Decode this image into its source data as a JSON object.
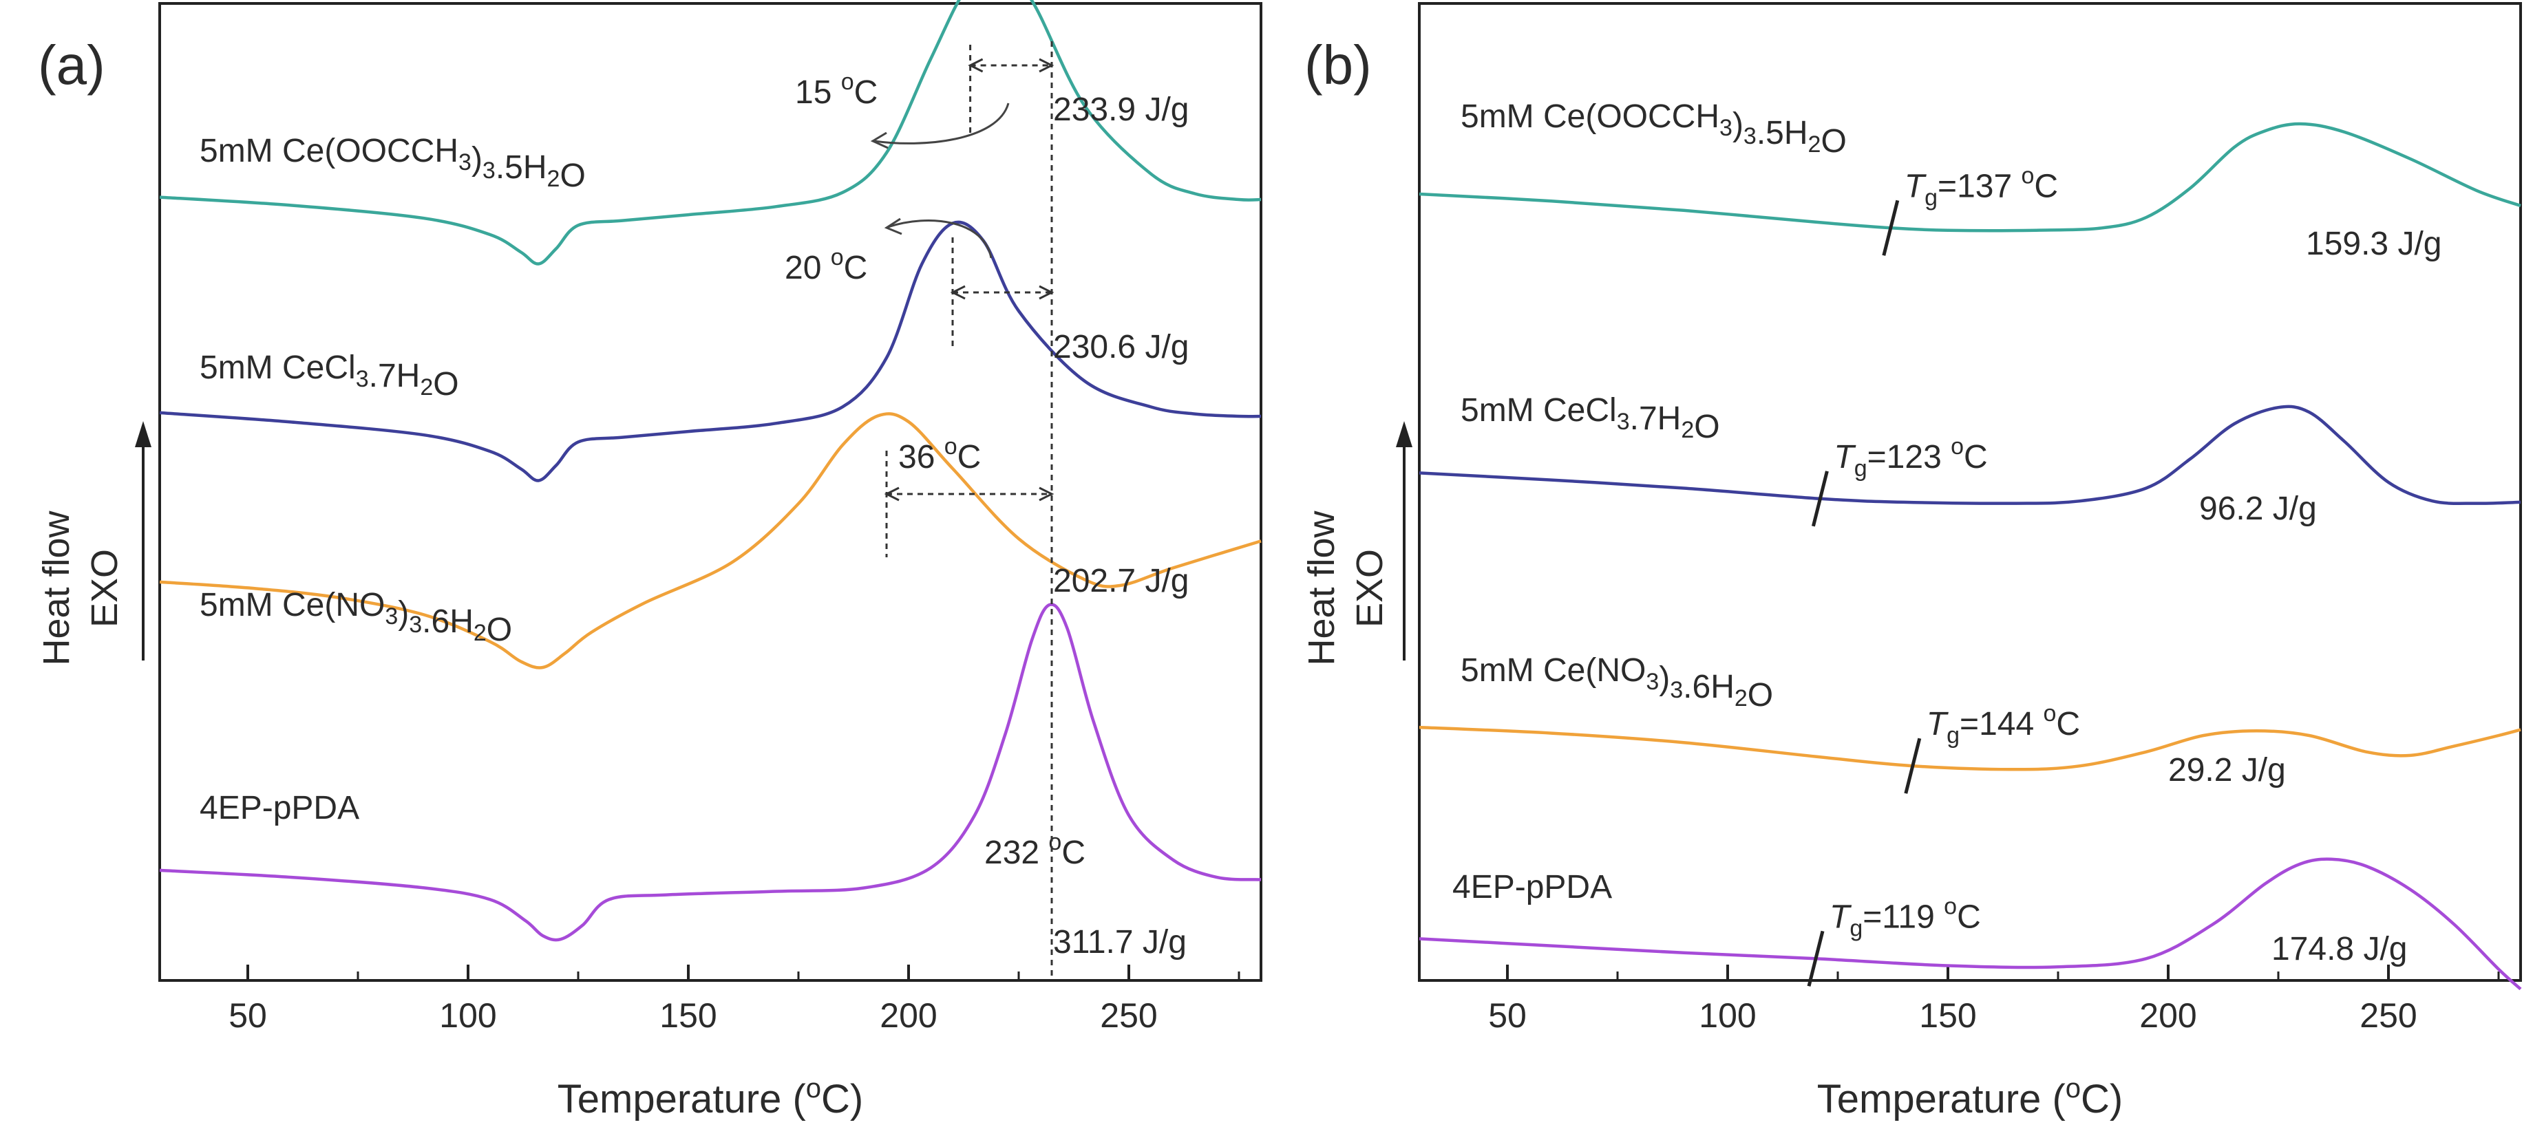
{
  "chart_data": [
    {
      "type": "line",
      "panel": "(a)",
      "xlabel": "Temperature (",
      "xlabel_sup": "o",
      "xlabel_tail": "C)",
      "ylabel": "Heat flow",
      "ylabel2": "EXO",
      "xlim": [
        30,
        280
      ],
      "xticks": [
        50,
        100,
        150,
        200,
        250
      ],
      "grid": false,
      "series": [
        {
          "name": "5mM Ce(OOCCH3)3.5H2O",
          "color": "#3aa79a",
          "label_parts": [
            [
              "5mM Ce(OOCCH",
              ""
            ],
            [
              "3",
              "sub"
            ],
            [
              ")",
              ""
            ],
            [
              "3",
              "sub"
            ],
            [
              ".5H",
              ""
            ],
            [
              "2",
              "sub"
            ],
            [
              "O",
              ""
            ]
          ],
          "peak_label": "233.9 J/g",
          "x": [
            30,
            60,
            90,
            105,
            112,
            116,
            120,
            125,
            135,
            150,
            170,
            185,
            195,
            205,
            213,
            220,
            228,
            240,
            255,
            265,
            275,
            280
          ],
          "y": [
            0.2,
            -0.5,
            -1.6,
            -3,
            -4.5,
            -5.5,
            -4.2,
            -2.2,
            -1.8,
            -1.3,
            -0.6,
            0.6,
            4,
            12,
            18,
            20,
            17,
            8,
            2.2,
            0.5,
            0,
            0
          ]
        },
        {
          "name": "5mM CeCl3.7H2O",
          "color": "#3d3f99",
          "label_parts": [
            [
              "5mM CeCl",
              ""
            ],
            [
              "3",
              "sub"
            ],
            [
              ".7H",
              ""
            ],
            [
              "2",
              "sub"
            ],
            [
              "O",
              ""
            ]
          ],
          "peak_label": "230.6 J/g",
          "x": [
            30,
            60,
            90,
            105,
            112,
            116,
            120,
            125,
            135,
            150,
            170,
            185,
            195,
            203,
            210,
            217,
            225,
            240,
            255,
            265,
            275,
            280
          ],
          "y": [
            0.3,
            -0.5,
            -1.6,
            -3,
            -4.5,
            -5.5,
            -4.2,
            -2.2,
            -1.8,
            -1.3,
            -0.6,
            0.8,
            5,
            13,
            16.5,
            15,
            9,
            3,
            0.8,
            0.2,
            0,
            0
          ]
        },
        {
          "name": "5mM Ce(NO3)3.6H2O",
          "color": "#f0a23a",
          "label_parts": [
            [
              "5mM Ce(NO",
              ""
            ],
            [
              "3",
              "sub"
            ],
            [
              ")",
              ""
            ],
            [
              "3",
              "sub"
            ],
            [
              ".6H",
              ""
            ],
            [
              "2",
              "sub"
            ],
            [
              "O",
              ""
            ]
          ],
          "peak_label": "202.7 J/g",
          "x": [
            30,
            50,
            70,
            90,
            105,
            112,
            117,
            122,
            128,
            140,
            160,
            175,
            185,
            193,
            200,
            210,
            225,
            240,
            248,
            260,
            280
          ],
          "y": [
            7.3,
            6.8,
            6,
            4.5,
            2.2,
            0.5,
            0,
            1.2,
            3,
            5.5,
            9,
            14,
            19,
            21.5,
            21,
            17,
            11,
            7.5,
            7,
            8.5,
            10.8
          ]
        },
        {
          "name": "4EP-pPDA",
          "color": "#a64bd8",
          "label_parts": [
            [
              "4EP-pPDA",
              ""
            ]
          ],
          "peak_label": "311.7 J/g",
          "extra_label": "232 ",
          "extra_label_sup": "o",
          "extra_label_tail": "C",
          "x": [
            30,
            60,
            90,
            105,
            113,
            117,
            121,
            126,
            132,
            145,
            170,
            190,
            205,
            215,
            222,
            228,
            232,
            236,
            242,
            250,
            260,
            270,
            280
          ],
          "y": [
            0.3,
            -0.3,
            -1.2,
            -2.2,
            -4,
            -5.3,
            -5.6,
            -4.4,
            -2.2,
            -1.8,
            -1.5,
            -1.2,
            0.5,
            5,
            12,
            20,
            23,
            21,
            13,
            5,
            1.2,
            -0.3,
            -0.5
          ]
        }
      ],
      "annotations": [
        {
          "text": "15 ",
          "sup": "o",
          "tail": "C"
        },
        {
          "text": "20 ",
          "sup": "o",
          "tail": "C"
        },
        {
          "text": "36 ",
          "sup": "o",
          "tail": "C"
        }
      ],
      "reference_temps": [
        214,
        232.5,
        210,
        195
      ]
    },
    {
      "type": "line",
      "panel": "(b)",
      "xlabel": "Temperature (",
      "xlabel_sup": "o",
      "xlabel_tail": "C)",
      "ylabel": "Heat flow",
      "ylabel2": "EXO",
      "xlim": [
        30,
        280
      ],
      "xticks": [
        50,
        100,
        150,
        200,
        250
      ],
      "grid": false,
      "series": [
        {
          "name": "5mM Ce(OOCCH3)3.5H2O",
          "color": "#3aa79a",
          "label_parts": [
            [
              "5mM Ce(OOCCH",
              ""
            ],
            [
              "3",
              "sub"
            ],
            [
              ")",
              ""
            ],
            [
              "3",
              "sub"
            ],
            [
              ".5H",
              ""
            ],
            [
              "2",
              "sub"
            ],
            [
              "O",
              ""
            ]
          ],
          "peak_label": "159.3 J/g",
          "tg_label": "=137 ",
          "tg_sup": "o",
          "tg_tail": "C",
          "tg_x": 137,
          "x": [
            30,
            60,
            90,
            120,
            137,
            150,
            170,
            185,
            195,
            205,
            215,
            222,
            230,
            240,
            255,
            270,
            280
          ],
          "y": [
            4,
            3.4,
            2.6,
            1.6,
            1.1,
            0.9,
            0.9,
            1.1,
            2,
            4.5,
            8,
            9.4,
            10,
            9.3,
            7,
            4.3,
            3
          ]
        },
        {
          "name": "5mM CeCl3.7H2O",
          "color": "#3d3f99",
          "label_parts": [
            [
              "5mM CeCl",
              ""
            ],
            [
              "3",
              "sub"
            ],
            [
              ".7H",
              ""
            ],
            [
              "2",
              "sub"
            ],
            [
              "O",
              ""
            ]
          ],
          "peak_label": "96.2 J/g",
          "tg_label": "=123 ",
          "tg_sup": "o",
          "tg_tail": "C",
          "tg_x": 121,
          "x": [
            30,
            60,
            90,
            121,
            140,
            165,
            180,
            195,
            205,
            215,
            225,
            232,
            240,
            250,
            260,
            270,
            280
          ],
          "y": [
            2.8,
            2.2,
            1.5,
            0.6,
            0.3,
            0.2,
            0.4,
            1.5,
            4,
            7,
            8.4,
            8,
            5.5,
            2,
            0.4,
            0.2,
            0.3
          ]
        },
        {
          "name": "5mM Ce(NO3)3.6H2O",
          "color": "#f0a23a",
          "label_parts": [
            [
              "5mM Ce(NO",
              ""
            ],
            [
              "3",
              "sub"
            ],
            [
              ")",
              ""
            ],
            [
              "3",
              "sub"
            ],
            [
              ".6H",
              ""
            ],
            [
              "2",
              "sub"
            ],
            [
              "O",
              ""
            ]
          ],
          "peak_label": "29.2 J/g",
          "tg_label": "=144 ",
          "tg_sup": "o",
          "tg_tail": "C",
          "tg_x": 142,
          "x": [
            30,
            60,
            90,
            120,
            142,
            165,
            180,
            195,
            208,
            220,
            232,
            245,
            255,
            265,
            275,
            280
          ],
          "y": [
            3.7,
            3.2,
            2.4,
            1.2,
            0.4,
            0.1,
            0.4,
            1.6,
            3,
            3.4,
            3,
            1.6,
            1.3,
            2.1,
            3,
            3.5
          ]
        },
        {
          "name": "4EP-pPDA",
          "color": "#a64bd8",
          "label_parts": [
            [
              "4EP-pPDA",
              ""
            ]
          ],
          "peak_label": "174.8 J/g",
          "tg_label": "=119 ",
          "tg_sup": "o",
          "tg_tail": "C",
          "tg_x": 120,
          "x": [
            30,
            60,
            90,
            120,
            150,
            175,
            195,
            210,
            222,
            230,
            237,
            245,
            255,
            265,
            275,
            280
          ],
          "y": [
            1.8,
            1.2,
            0.6,
            0.1,
            -0.5,
            -0.6,
            0.1,
            3,
            6.5,
            8.2,
            8.6,
            8,
            6,
            3,
            -0.8,
            -2.5
          ]
        }
      ]
    }
  ]
}
